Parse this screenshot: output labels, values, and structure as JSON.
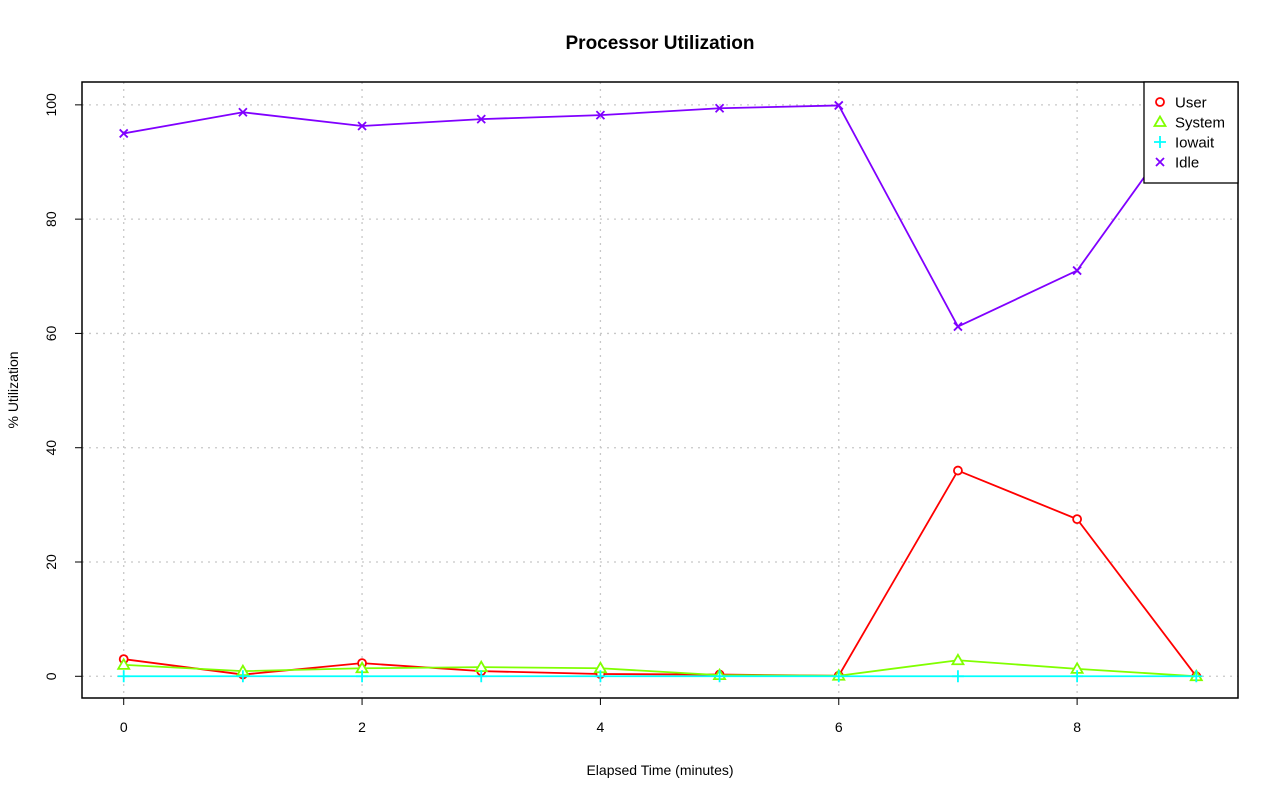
{
  "chart_data": {
    "type": "line",
    "title": "Processor Utilization",
    "xlabel": "Elapsed Time (minutes)",
    "ylabel": "% Utilization",
    "xlim": [
      -0.35,
      9.35
    ],
    "ylim": [
      -3.8,
      104
    ],
    "x_ticks": [
      0,
      2,
      4,
      6,
      8
    ],
    "y_ticks": [
      0,
      20,
      40,
      60,
      80,
      100
    ],
    "grid": true,
    "legend_position": "top-right",
    "x": [
      0,
      1,
      2,
      3,
      4,
      5,
      6,
      7,
      8,
      9
    ],
    "series": [
      {
        "name": "User",
        "color": "#ff0000",
        "marker": "circle",
        "values": [
          3.0,
          0.3,
          2.3,
          0.9,
          0.4,
          0.3,
          0.1,
          36.0,
          27.5,
          0.0
        ]
      },
      {
        "name": "System",
        "color": "#80ff00",
        "marker": "triangle",
        "values": [
          2.0,
          0.9,
          1.4,
          1.6,
          1.4,
          0.2,
          0.1,
          2.8,
          1.3,
          0.0
        ]
      },
      {
        "name": "Iowait",
        "color": "#00ffff",
        "marker": "plus",
        "values": [
          0,
          0,
          0,
          0,
          0,
          0,
          0,
          0,
          0,
          0
        ]
      },
      {
        "name": "Idle",
        "color": "#8000ff",
        "marker": "cross",
        "values": [
          95.0,
          98.7,
          96.3,
          97.5,
          98.2,
          99.4,
          99.9,
          61.2,
          71.0,
          100.0
        ]
      }
    ]
  }
}
